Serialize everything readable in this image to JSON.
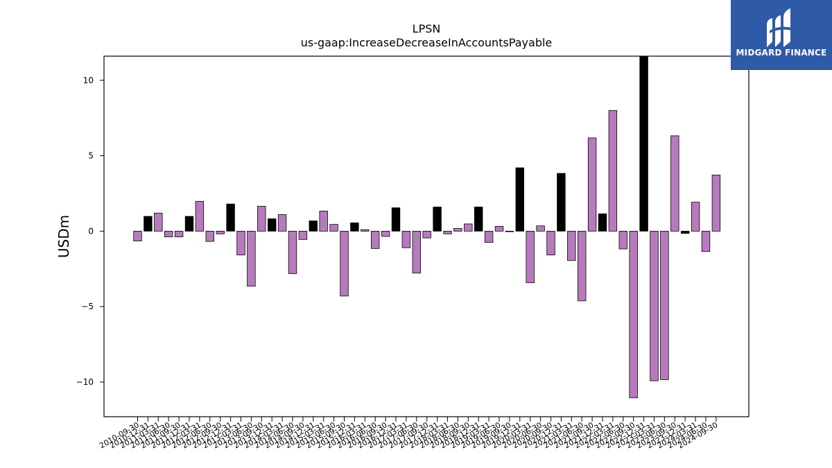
{
  "chart_data": {
    "type": "bar",
    "title": "LPSN",
    "subtitle": "us-gaap:IncreaseDecreaseInAccountsPayable",
    "ylabel": "USDm",
    "xlabel": "",
    "ylim": [
      -12.3,
      11.6
    ],
    "yticks": [
      -10,
      -5,
      0,
      5,
      10
    ],
    "ytick_labels": [
      "−10",
      "−5",
      "0",
      "5",
      "10"
    ],
    "colors": {
      "quarter": "#b77bbd",
      "annual": "#000000",
      "edge": "#000000"
    },
    "categories": [
      "2010-09-30",
      "2010-12-31",
      "2011-03-31",
      "2011-06-30",
      "2011-09-30",
      "2011-12-31",
      "2012-03-31",
      "2012-06-30",
      "2012-09-30",
      "2012-12-31",
      "2013-03-31",
      "2013-06-30",
      "2013-09-30",
      "2013-12-31",
      "2014-03-31",
      "2014-06-30",
      "2014-09-30",
      "2014-12-31",
      "2015-03-31",
      "2015-06-30",
      "2015-09-30",
      "2015-12-31",
      "2016-03-31",
      "2016-06-30",
      "2016-09-30",
      "2016-12-31",
      "2017-03-31",
      "2017-06-30",
      "2017-09-30",
      "2017-12-31",
      "2018-03-31",
      "2018-06-30",
      "2018-09-30",
      "2018-12-31",
      "2019-03-31",
      "2019-06-30",
      "2019-09-30",
      "2019-12-31",
      "2020-03-31",
      "2020-06-30",
      "2020-09-30",
      "2020-12-31",
      "2021-03-31",
      "2021-06-30",
      "2021-09-30",
      "2021-12-31",
      "2022-03-31",
      "2022-06-30",
      "2022-09-30",
      "2022-12-31",
      "2023-03-31",
      "2023-06-30",
      "2023-09-30",
      "2023-12-31",
      "2024-03-31",
      "2024-06-30",
      "2024-09-30"
    ],
    "values": [
      -0.65,
      0.98,
      1.2,
      -0.38,
      -0.38,
      0.98,
      1.98,
      -0.68,
      -0.18,
      1.8,
      -1.58,
      -3.65,
      1.65,
      0.82,
      1.1,
      -2.82,
      -0.55,
      0.68,
      1.33,
      0.45,
      -4.3,
      0.55,
      0.1,
      -1.15,
      -0.35,
      1.55,
      -1.1,
      -2.78,
      -0.45,
      1.6,
      -0.18,
      0.18,
      0.48,
      1.6,
      -0.75,
      0.32,
      -0.02,
      4.2,
      -3.42,
      0.35,
      -1.58,
      3.83,
      -1.95,
      -4.62,
      6.18,
      1.15,
      8.0,
      -1.18,
      -11.05,
      11.6,
      -9.92,
      -9.85,
      6.32,
      -0.15,
      1.92,
      -1.35,
      3.72
    ],
    "annual": [
      false,
      true,
      false,
      false,
      false,
      true,
      false,
      false,
      false,
      true,
      false,
      false,
      false,
      true,
      false,
      false,
      false,
      true,
      false,
      false,
      false,
      true,
      false,
      false,
      false,
      true,
      false,
      false,
      false,
      true,
      false,
      false,
      false,
      true,
      false,
      false,
      false,
      true,
      false,
      false,
      false,
      true,
      false,
      false,
      false,
      true,
      false,
      false,
      false,
      true,
      false,
      false,
      false,
      true,
      false,
      false,
      false
    ]
  },
  "logo": {
    "text": "MIDGARD FINANCE"
  }
}
